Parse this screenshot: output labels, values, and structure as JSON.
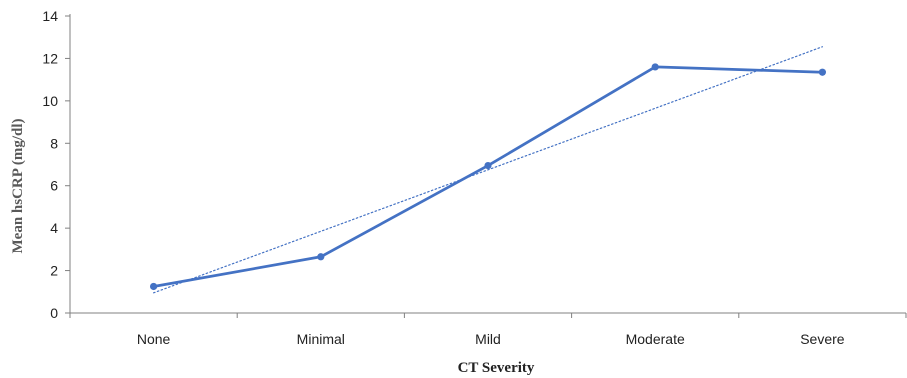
{
  "chart_data": {
    "type": "line",
    "categories": [
      "None",
      "Minimal",
      "Mild",
      "Moderate",
      "Severe"
    ],
    "series": [
      {
        "values": [
          1.25,
          2.65,
          6.95,
          11.6,
          11.35
        ],
        "color": "#4472c4",
        "style": "solid",
        "markers": true
      }
    ],
    "trendline": {
      "kind": "linear",
      "color": "#4472c4",
      "style": "dotted",
      "start": 0.95,
      "end": 12.55
    },
    "xlabel": "CT Severity",
    "ylabel": "Mean hsCRP (mg/dl)",
    "ylim": [
      0,
      14
    ],
    "yticks": [
      "0",
      "2",
      "4",
      "6",
      "8",
      "10",
      "12",
      "14"
    ],
    "grid": false,
    "legend": "none"
  }
}
